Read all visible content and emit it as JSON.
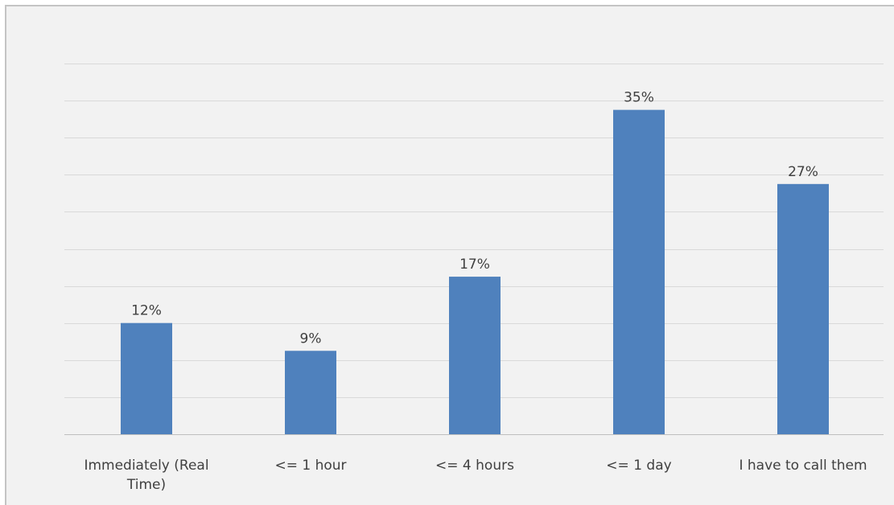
{
  "chart_data": {
    "type": "bar",
    "categories": [
      [
        "Immediately (Real",
        "Time)"
      ],
      [
        "<= 1 hour"
      ],
      [
        "<= 4 hours"
      ],
      [
        "<= 1 day"
      ],
      [
        "I have to call them"
      ]
    ],
    "values": [
      12,
      9,
      17,
      35,
      27
    ],
    "data_labels": [
      "12%",
      "9%",
      "17%",
      "35%",
      "27%"
    ],
    "title": "",
    "xlabel": "",
    "ylabel": "",
    "ylim": [
      0,
      40
    ],
    "gridlines": 10,
    "grid": true,
    "legend": "none",
    "colors": {
      "bar": "#4f81bd",
      "background": "#f2f2f2",
      "grid": "#d9d9d9",
      "text": "#404040"
    }
  }
}
